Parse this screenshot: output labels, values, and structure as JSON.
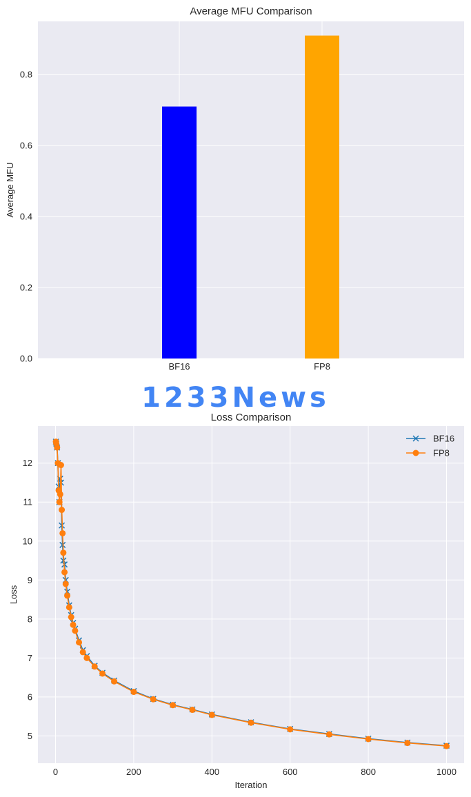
{
  "watermark": {
    "text": "1233News",
    "color": "#4285f4"
  },
  "colors": {
    "plot_bg": "#eaeaf2",
    "grid": "#ffffff",
    "bf16_bar": "#0000ff",
    "fp8_bar": "#ffa500",
    "bf16_line": "#1f77b4",
    "fp8_line": "#ff7f0e"
  },
  "chart_data": [
    {
      "type": "bar",
      "title": "Average MFU Comparison",
      "xlabel": "",
      "ylabel": "Average MFU",
      "categories": [
        "BF16",
        "FP8"
      ],
      "values": [
        0.71,
        0.91
      ],
      "ylim": [
        0,
        0.95
      ],
      "yticks": [
        0.0,
        0.2,
        0.4,
        0.6,
        0.8
      ],
      "ytick_labels": [
        "0.0",
        "0.2",
        "0.4",
        "0.6",
        "0.8"
      ],
      "grid": true
    },
    {
      "type": "line",
      "title": "Loss Comparison",
      "xlabel": "Iteration",
      "ylabel": "Loss",
      "xlim": [
        -45,
        1045
      ],
      "ylim": [
        4.3,
        12.95
      ],
      "xticks": [
        0,
        200,
        400,
        600,
        800,
        1000
      ],
      "xtick_labels": [
        "0",
        "200",
        "400",
        "600",
        "800",
        "1000"
      ],
      "yticks": [
        5,
        6,
        7,
        8,
        9,
        10,
        11,
        12
      ],
      "ytick_labels": [
        "5",
        "6",
        "7",
        "8",
        "9",
        "10",
        "11",
        "12"
      ],
      "grid": true,
      "legend": "top-right",
      "series": [
        {
          "name": "BF16",
          "marker": "x",
          "x": [
            1,
            2,
            4,
            6,
            8,
            10,
            12,
            14,
            16,
            18,
            20,
            23,
            26,
            30,
            35,
            40,
            45,
            50,
            60,
            70,
            80,
            100,
            120,
            150,
            200,
            250,
            300,
            350,
            400,
            500,
            600,
            700,
            800,
            900,
            1000
          ],
          "y": [
            12.55,
            12.5,
            12.4,
            12.0,
            11.4,
            11.0,
            11.6,
            11.5,
            10.4,
            9.9,
            9.5,
            9.4,
            9.0,
            8.7,
            8.35,
            8.1,
            7.9,
            7.75,
            7.45,
            7.2,
            7.05,
            6.8,
            6.62,
            6.42,
            6.15,
            5.95,
            5.8,
            5.68,
            5.55,
            5.35,
            5.18,
            5.05,
            4.93,
            4.83,
            4.75
          ]
        },
        {
          "name": "FP8",
          "marker": "o",
          "x": [
            1,
            2,
            4,
            6,
            8,
            10,
            12,
            14,
            16,
            18,
            20,
            23,
            26,
            30,
            35,
            40,
            45,
            50,
            60,
            70,
            80,
            100,
            120,
            150,
            200,
            250,
            300,
            350,
            400,
            500,
            600,
            700,
            800,
            900,
            1000
          ],
          "y": [
            12.55,
            12.5,
            12.4,
            12.0,
            11.3,
            11.0,
            11.2,
            11.95,
            10.8,
            10.2,
            9.7,
            9.2,
            8.9,
            8.6,
            8.3,
            8.05,
            7.85,
            7.7,
            7.4,
            7.15,
            7.0,
            6.78,
            6.6,
            6.4,
            6.13,
            5.94,
            5.79,
            5.67,
            5.54,
            5.34,
            5.17,
            5.04,
            4.92,
            4.82,
            4.74
          ]
        }
      ]
    }
  ]
}
